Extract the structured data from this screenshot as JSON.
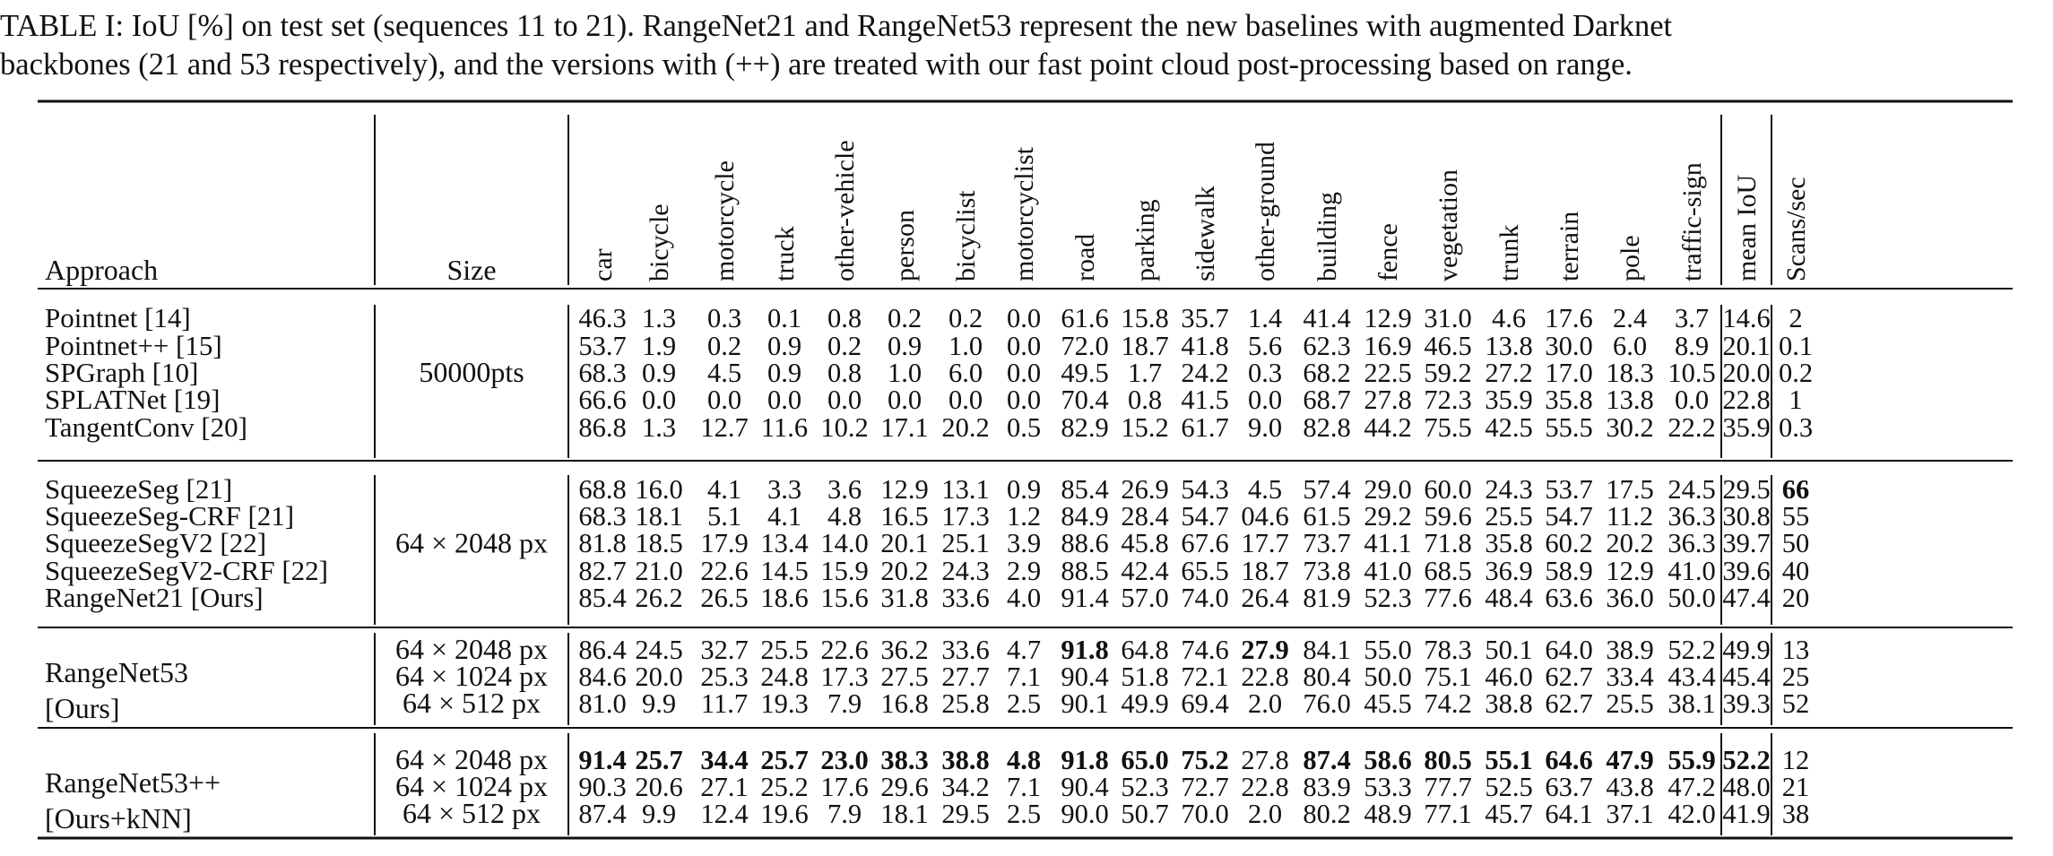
{
  "caption": {
    "line1": "TABLE I: IoU [%] on test set (sequences 11 to 21). RangeNet21 and RangeNet53 represent the new baselines with augmented Darknet",
    "line2": "backbones (21 and 53 respectively), and the versions with (++) are treated with our fast point cloud post-processing based on range."
  },
  "header": {
    "approach": "Approach",
    "size": "Size",
    "classes": [
      "car",
      "bicycle",
      "motorcycle",
      "truck",
      "other-vehicle",
      "person",
      "bicyclist",
      "motorcyclist",
      "road",
      "parking",
      "sidewalk",
      "other-ground",
      "building",
      "fence",
      "vegetation",
      "trunk",
      "terrain",
      "pole",
      "traffic-sign"
    ],
    "mean": "mean IoU",
    "scans": "Scans/sec"
  },
  "groups": [
    {
      "sizes": [
        "50000pts"
      ],
      "rows": [
        {
          "approach": "Pointnet [14]",
          "values": [
            "46.3",
            "1.3",
            "0.3",
            "0.1",
            "0.8",
            "0.2",
            "0.2",
            "0.0",
            "61.6",
            "15.8",
            "35.7",
            "1.4",
            "41.4",
            "12.9",
            "31.0",
            "4.6",
            "17.6",
            "2.4",
            "3.7"
          ],
          "mean": "14.6",
          "scans": "2"
        },
        {
          "approach": "Pointnet++ [15]",
          "values": [
            "53.7",
            "1.9",
            "0.2",
            "0.9",
            "0.2",
            "0.9",
            "1.0",
            "0.0",
            "72.0",
            "18.7",
            "41.8",
            "5.6",
            "62.3",
            "16.9",
            "46.5",
            "13.8",
            "30.0",
            "6.0",
            "8.9"
          ],
          "mean": "20.1",
          "scans": "0.1"
        },
        {
          "approach": "SPGraph [10]",
          "values": [
            "68.3",
            "0.9",
            "4.5",
            "0.9",
            "0.8",
            "1.0",
            "6.0",
            "0.0",
            "49.5",
            "1.7",
            "24.2",
            "0.3",
            "68.2",
            "22.5",
            "59.2",
            "27.2",
            "17.0",
            "18.3",
            "10.5"
          ],
          "mean": "20.0",
          "scans": "0.2"
        },
        {
          "approach": "SPLATNet [19]",
          "values": [
            "66.6",
            "0.0",
            "0.0",
            "0.0",
            "0.0",
            "0.0",
            "0.0",
            "0.0",
            "70.4",
            "0.8",
            "41.5",
            "0.0",
            "68.7",
            "27.8",
            "72.3",
            "35.9",
            "35.8",
            "13.8",
            "0.0"
          ],
          "mean": "22.8",
          "scans": "1"
        },
        {
          "approach": "TangentConv [20]",
          "values": [
            "86.8",
            "1.3",
            "12.7",
            "11.6",
            "10.2",
            "17.1",
            "20.2",
            "0.5",
            "82.9",
            "15.2",
            "61.7",
            "9.0",
            "82.8",
            "44.2",
            "75.5",
            "42.5",
            "55.5",
            "30.2",
            "22.2"
          ],
          "mean": "35.9",
          "scans": "0.3"
        }
      ]
    },
    {
      "sizes": [
        "64 × 2048 px"
      ],
      "rows": [
        {
          "approach": "SqueezeSeg [21]",
          "values": [
            "68.8",
            "16.0",
            "4.1",
            "3.3",
            "3.6",
            "12.9",
            "13.1",
            "0.9",
            "85.4",
            "26.9",
            "54.3",
            "4.5",
            "57.4",
            "29.0",
            "60.0",
            "24.3",
            "53.7",
            "17.5",
            "24.5"
          ],
          "mean": "29.5",
          "scans": "66"
        },
        {
          "approach": "SqueezeSeg-CRF [21]",
          "values": [
            "68.3",
            "18.1",
            "5.1",
            "4.1",
            "4.8",
            "16.5",
            "17.3",
            "1.2",
            "84.9",
            "28.4",
            "54.7",
            "04.6",
            "61.5",
            "29.2",
            "59.6",
            "25.5",
            "54.7",
            "11.2",
            "36.3"
          ],
          "mean": "30.8",
          "scans": "55"
        },
        {
          "approach": "SqueezeSegV2 [22]",
          "values": [
            "81.8",
            "18.5",
            "17.9",
            "13.4",
            "14.0",
            "20.1",
            "25.1",
            "3.9",
            "88.6",
            "45.8",
            "67.6",
            "17.7",
            "73.7",
            "41.1",
            "71.8",
            "35.8",
            "60.2",
            "20.2",
            "36.3"
          ],
          "mean": "39.7",
          "scans": "50"
        },
        {
          "approach": "SqueezeSegV2-CRF [22]",
          "values": [
            "82.7",
            "21.0",
            "22.6",
            "14.5",
            "15.9",
            "20.2",
            "24.3",
            "2.9",
            "88.5",
            "42.4",
            "65.5",
            "18.7",
            "73.8",
            "41.0",
            "68.5",
            "36.9",
            "58.9",
            "12.9",
            "41.0"
          ],
          "mean": "39.6",
          "scans": "40"
        },
        {
          "approach": "RangeNet21 [Ours]",
          "values": [
            "85.4",
            "26.2",
            "26.5",
            "18.6",
            "15.6",
            "31.8",
            "33.6",
            "4.0",
            "91.4",
            "57.0",
            "74.0",
            "26.4",
            "81.9",
            "52.3",
            "77.6",
            "48.4",
            "63.6",
            "36.0",
            "50.0"
          ],
          "mean": "47.4",
          "scans": "20"
        }
      ]
    },
    {
      "approach_lines": [
        "RangeNet53",
        "[Ours]"
      ],
      "sizes": [
        "64 × 2048 px",
        "64 × 1024 px",
        "64 × 512 px"
      ],
      "rows": [
        {
          "values": [
            "86.4",
            "24.5",
            "32.7",
            "25.5",
            "22.6",
            "36.2",
            "33.6",
            "4.7",
            "91.8",
            "64.8",
            "74.6",
            "27.9",
            "84.1",
            "55.0",
            "78.3",
            "50.1",
            "64.0",
            "38.9",
            "52.2"
          ],
          "mean": "49.9",
          "scans": "13"
        },
        {
          "values": [
            "84.6",
            "20.0",
            "25.3",
            "24.8",
            "17.3",
            "27.5",
            "27.7",
            "7.1",
            "90.4",
            "51.8",
            "72.1",
            "22.8",
            "80.4",
            "50.0",
            "75.1",
            "46.0",
            "62.7",
            "33.4",
            "43.4"
          ],
          "mean": "45.4",
          "scans": "25"
        },
        {
          "values": [
            "81.0",
            "9.9",
            "11.7",
            "19.3",
            "7.9",
            "16.8",
            "25.8",
            "2.5",
            "90.1",
            "49.9",
            "69.4",
            "2.0",
            "76.0",
            "45.5",
            "74.2",
            "38.8",
            "62.7",
            "25.5",
            "38.1"
          ],
          "mean": "39.3",
          "scans": "52"
        }
      ]
    },
    {
      "approach_lines": [
        "RangeNet53++",
        "[Ours+kNN]"
      ],
      "sizes": [
        "64 × 2048 px",
        "64 × 1024 px",
        "64 × 512 px"
      ],
      "rows": [
        {
          "values": [
            "91.4",
            "25.7",
            "34.4",
            "25.7",
            "23.0",
            "38.3",
            "38.8",
            "4.8",
            "91.8",
            "65.0",
            "75.2",
            "27.8",
            "87.4",
            "58.6",
            "80.5",
            "55.1",
            "64.6",
            "47.9",
            "55.9"
          ],
          "mean": "52.2",
          "scans": "12"
        },
        {
          "values": [
            "90.3",
            "20.6",
            "27.1",
            "25.2",
            "17.6",
            "29.6",
            "34.2",
            "7.1",
            "90.4",
            "52.3",
            "72.7",
            "22.8",
            "83.9",
            "53.3",
            "77.7",
            "52.5",
            "63.7",
            "43.8",
            "47.2"
          ],
          "mean": "48.0",
          "scans": "21"
        },
        {
          "values": [
            "87.4",
            "9.9",
            "12.4",
            "19.6",
            "7.9",
            "18.1",
            "29.5",
            "2.5",
            "90.0",
            "50.7",
            "70.0",
            "2.0",
            "80.2",
            "48.9",
            "77.1",
            "45.7",
            "64.1",
            "37.1",
            "42.0"
          ],
          "mean": "41.9",
          "scans": "38"
        }
      ]
    }
  ],
  "bold_cells": [
    {
      "group": 1,
      "row": 0,
      "col": "scans"
    },
    {
      "group": 2,
      "row": 0,
      "col": 8
    },
    {
      "group": 2,
      "row": 0,
      "col": 11
    },
    {
      "group": 3,
      "row": 0,
      "col": 0
    },
    {
      "group": 3,
      "row": 0,
      "col": 1
    },
    {
      "group": 3,
      "row": 0,
      "col": 2
    },
    {
      "group": 3,
      "row": 0,
      "col": 3
    },
    {
      "group": 3,
      "row": 0,
      "col": 4
    },
    {
      "group": 3,
      "row": 0,
      "col": 5
    },
    {
      "group": 3,
      "row": 0,
      "col": 6
    },
    {
      "group": 3,
      "row": 0,
      "col": 7
    },
    {
      "group": 3,
      "row": 0,
      "col": 8
    },
    {
      "group": 3,
      "row": 0,
      "col": 9
    },
    {
      "group": 3,
      "row": 0,
      "col": 10
    },
    {
      "group": 3,
      "row": 0,
      "col": 12
    },
    {
      "group": 3,
      "row": 0,
      "col": 13
    },
    {
      "group": 3,
      "row": 0,
      "col": 14
    },
    {
      "group": 3,
      "row": 0,
      "col": 15
    },
    {
      "group": 3,
      "row": 0,
      "col": 16
    },
    {
      "group": 3,
      "row": 0,
      "col": 17
    },
    {
      "group": 3,
      "row": 0,
      "col": 18
    },
    {
      "group": 3,
      "row": 0,
      "col": "mean"
    }
  ]
}
